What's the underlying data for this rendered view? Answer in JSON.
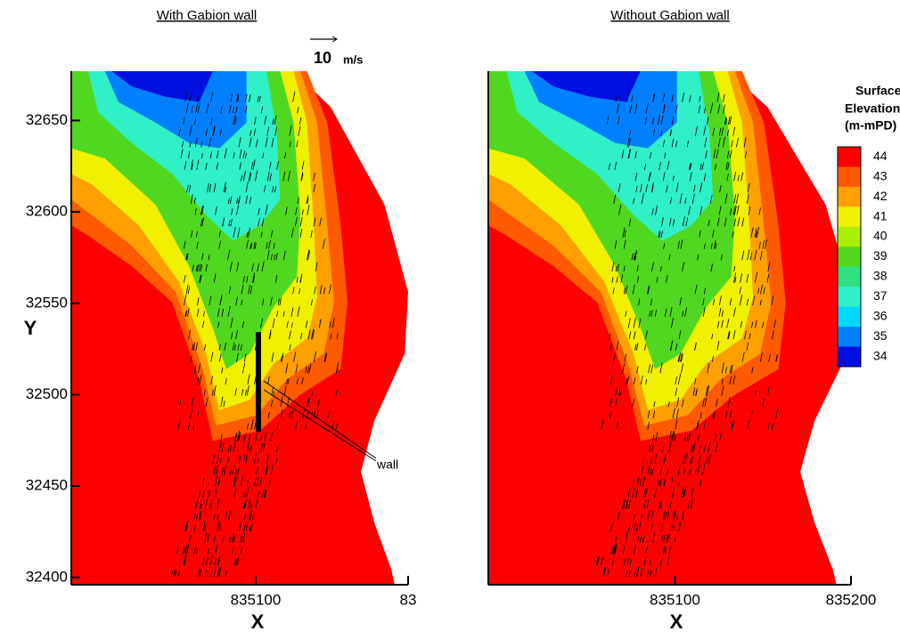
{
  "chart_data": [
    {
      "type": "contour",
      "title": "With Gabion wall",
      "xlabel": "X",
      "ylabel": "Y",
      "xlim": [
        834979,
        835200
      ],
      "ylim": [
        32396,
        32677
      ],
      "xticks": [
        835100,
        {
          "value": 835200,
          "label": "83"
        }
      ],
      "yticks": [
        32400,
        32450,
        32500,
        32550,
        32600,
        32650
      ],
      "vector_scale": {
        "value": 10,
        "unit": "m/s"
      },
      "annotations": [
        "wall"
      ]
    },
    {
      "type": "contour",
      "title": "Without Gabion wall",
      "xlabel": "X",
      "xlim": [
        834994,
        835200
      ],
      "ylim": [
        32396,
        32677
      ],
      "xticks": [
        835100,
        835200
      ],
      "colorbar": {
        "title": [
          "Surface",
          "Elevation",
          "(m-mPD)"
        ],
        "levels": [
          44,
          43,
          42,
          41,
          40,
          39,
          38,
          37,
          36,
          35,
          34
        ],
        "colors": [
          "#ff0000",
          "#ff5a00",
          "#ffa000",
          "#f0f000",
          "#a8f000",
          "#50d820",
          "#30e080",
          "#30f0c8",
          "#00d8ff",
          "#0080ff",
          "#0010e0"
        ]
      }
    }
  ]
}
